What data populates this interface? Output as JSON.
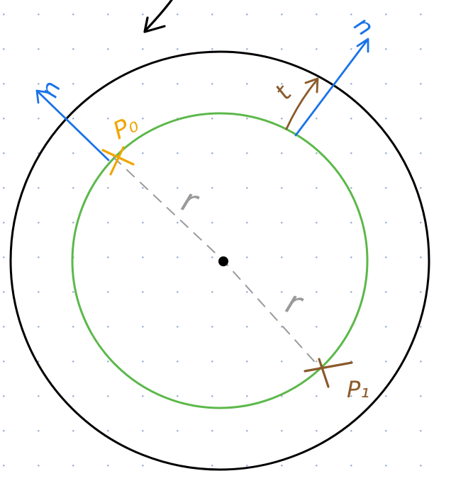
{
  "colors": {
    "background": "#ffffff",
    "dot_grid": "#9db4cf",
    "outer_circle": "#000000",
    "inner_circle": "#5cb84a",
    "center_point": "#000000",
    "radius_dashes": "#9a9a9a",
    "radius_label": "#9a9a9a",
    "point_p0": "#f0a500",
    "point_p1": "#8b5a2b",
    "normal_vectors": "#1a73e8",
    "tangent_vector": "#8b5a2b",
    "rotation_arrow": "#000000"
  },
  "labels": {
    "p0": "P₀",
    "p1": "P₁",
    "radius_upper": "r",
    "radius_lower": "r",
    "normal_left": "n",
    "normal_right": "n",
    "tangent": "t"
  },
  "icons": {
    "rotation": "curved-arrow-icon"
  }
}
